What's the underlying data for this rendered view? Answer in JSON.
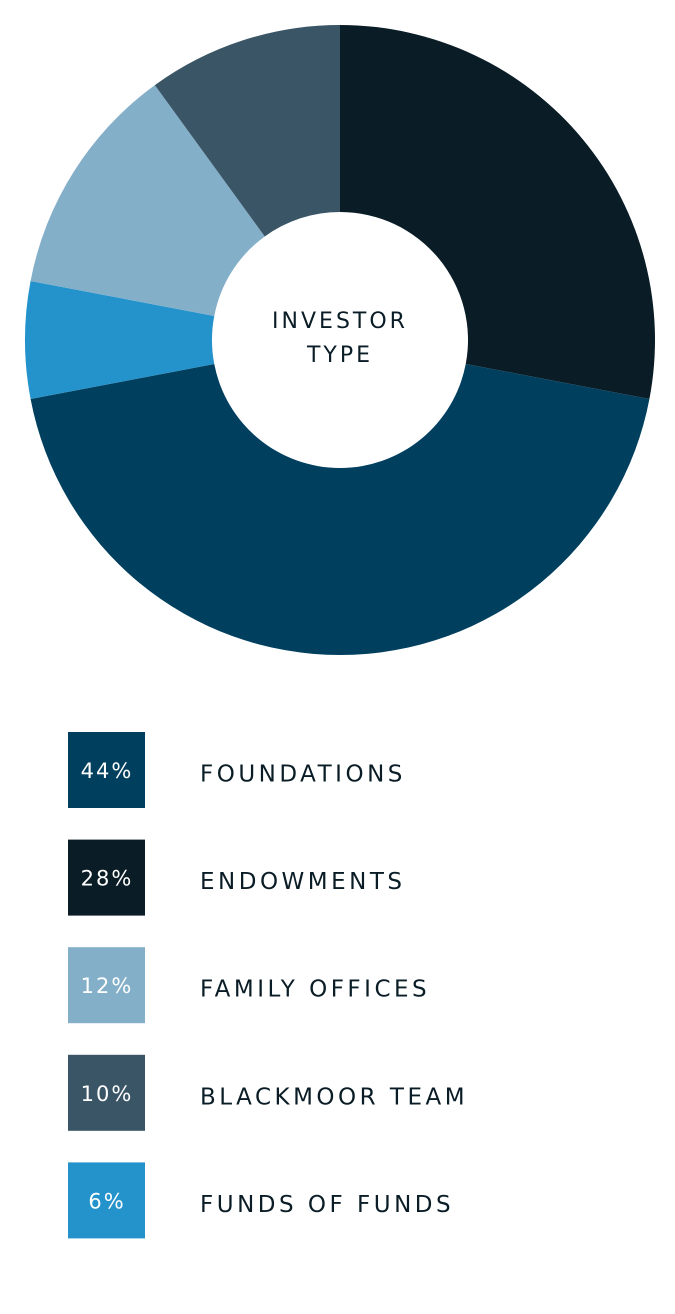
{
  "chart_data": {
    "type": "donut",
    "title": "INVESTOR TYPE",
    "categories": [
      "ENDOWMENTS",
      "FOUNDATIONS",
      "FUNDS OF FUNDS",
      "FAMILY OFFICES",
      "BLACKMOOR TEAM"
    ],
    "values": [
      28,
      44,
      6,
      12,
      10
    ],
    "value_labels": [
      "28%",
      "44%",
      "6%",
      "12%",
      "10%"
    ],
    "colors": [
      "#0a1c26",
      "#013f5f",
      "#2493cc",
      "#84afc9",
      "#3a5566"
    ]
  }
}
